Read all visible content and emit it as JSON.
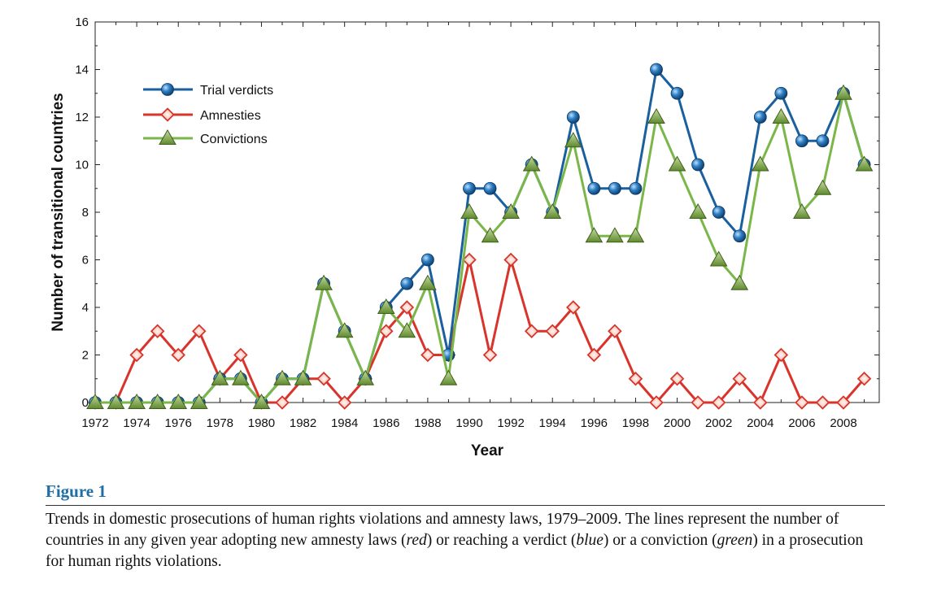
{
  "figure": {
    "label": "Figure 1",
    "caption_parts": [
      {
        "text": "Trends in domestic prosecutions of human rights violations and amnesty laws, 1979–2009. The lines represent the number of countries in any given year adopting new amnesty laws (",
        "italic": false
      },
      {
        "text": "red",
        "italic": true
      },
      {
        "text": ") or reaching a verdict (",
        "italic": false
      },
      {
        "text": "blue",
        "italic": true
      },
      {
        "text": ") or a conviction (",
        "italic": false
      },
      {
        "text": "green",
        "italic": true
      },
      {
        "text": ") in a prosecution for human rights violations.",
        "italic": false
      }
    ]
  },
  "chart_data": {
    "type": "line",
    "title": "",
    "xlabel": "Year",
    "ylabel": "Number of transitional countries",
    "xlim": [
      1972,
      2009
    ],
    "ylim": [
      0,
      16
    ],
    "x_ticks": [
      1972,
      1974,
      1976,
      1978,
      1980,
      1982,
      1984,
      1986,
      1988,
      1990,
      1992,
      1994,
      1996,
      1998,
      2000,
      2002,
      2004,
      2006,
      2008
    ],
    "y_ticks": [
      0,
      2,
      4,
      6,
      8,
      10,
      12,
      14,
      16
    ],
    "grid": false,
    "legend_position": "top-left",
    "x": [
      1972,
      1973,
      1974,
      1975,
      1976,
      1977,
      1978,
      1979,
      1980,
      1981,
      1982,
      1983,
      1984,
      1985,
      1986,
      1987,
      1988,
      1989,
      1990,
      1991,
      1992,
      1993,
      1994,
      1995,
      1996,
      1997,
      1998,
      1999,
      2000,
      2001,
      2002,
      2003,
      2004,
      2005,
      2006,
      2007,
      2008,
      2009
    ],
    "series": [
      {
        "name": "Trial verdicts",
        "color": "#1a5f9e",
        "marker": "circle",
        "values": [
          0,
          0,
          0,
          0,
          0,
          0,
          1,
          1,
          0,
          1,
          1,
          5,
          3,
          1,
          4,
          5,
          6,
          2,
          9,
          9,
          8,
          10,
          8,
          12,
          9,
          9,
          9,
          14,
          13,
          10,
          8,
          7,
          12,
          13,
          11,
          11,
          13,
          10
        ]
      },
      {
        "name": "Amnesties",
        "color": "#d8342b",
        "marker": "diamond",
        "values": [
          0,
          0,
          2,
          3,
          2,
          3,
          1,
          2,
          0,
          0,
          1,
          1,
          0,
          1,
          3,
          4,
          2,
          2,
          6,
          2,
          6,
          3,
          3,
          4,
          2,
          3,
          1,
          0,
          1,
          0,
          0,
          1,
          0,
          2,
          0,
          0,
          0,
          1
        ]
      },
      {
        "name": "Convictions",
        "color": "#7ab648",
        "marker": "triangle",
        "values": [
          0,
          0,
          0,
          0,
          0,
          0,
          1,
          1,
          0,
          1,
          1,
          5,
          3,
          1,
          4,
          3,
          5,
          1,
          8,
          7,
          8,
          10,
          8,
          11,
          7,
          7,
          7,
          12,
          10,
          8,
          6,
          5,
          10,
          12,
          8,
          9,
          13,
          10
        ]
      }
    ]
  }
}
